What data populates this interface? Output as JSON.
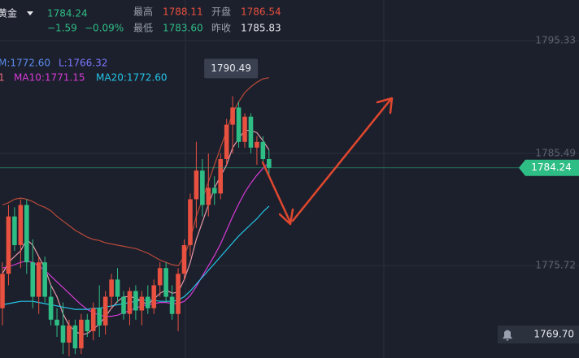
{
  "header": {
    "name": "黄金",
    "price": "1784.24",
    "change": "−1.59",
    "change_pct": "−0.09%",
    "high_label": "最高",
    "high": "1788.11",
    "open_label": "开盘",
    "open": "1786.54",
    "low_label": "最低",
    "low": "1783.60",
    "prev_label": "昨收",
    "prev": "1785.83"
  },
  "chart_data": {
    "type": "candlestick",
    "up_color": "#e8503f",
    "down_color": "#2ebd85",
    "ylim": [
      1767.66,
      1798.87
    ],
    "yticks": [
      1795.33,
      1785.49,
      1775.72
    ],
    "grid": true,
    "open": [
      1772,
      1775,
      1780,
      1777.5,
      1781,
      1776,
      1773,
      1776,
      1773,
      1771,
      1770.5,
      1769,
      1770.5,
      1768.5,
      1771,
      1770,
      1772,
      1770.5,
      1773,
      1774.5,
      1773,
      1771.5,
      1773.5,
      1771.8,
      1773,
      1772,
      1774,
      1775.5,
      1773,
      1771.5,
      1775,
      1777.5,
      1781.5,
      1784,
      1781,
      1782.5,
      1782,
      1785,
      1788,
      1789.5,
      1786.5,
      1788.7,
      1786,
      1786.5,
      1785
    ],
    "high": [
      1776,
      1781,
      1780.8,
      1781.5,
      1781.5,
      1778,
      1776.5,
      1776.5,
      1774,
      1772,
      1772.5,
      1771,
      1771,
      1771.5,
      1771.5,
      1772.5,
      1774,
      1773.5,
      1775,
      1775.5,
      1773.5,
      1773.8,
      1774,
      1773.5,
      1774,
      1774.5,
      1776,
      1776,
      1774,
      1775.5,
      1778,
      1782,
      1786.5,
      1785,
      1785.5,
      1783.5,
      1785.5,
      1788.5,
      1790.49,
      1790,
      1789,
      1789,
      1787,
      1787,
      1785.8
    ],
    "low": [
      1770.5,
      1774,
      1777,
      1775.5,
      1775,
      1772,
      1771.5,
      1772.5,
      1770.5,
      1769.5,
      1768,
      1767.8,
      1768,
      1768,
      1769.5,
      1769.2,
      1769.5,
      1769.7,
      1772,
      1772.5,
      1771,
      1770.5,
      1771,
      1770.5,
      1771.5,
      1771.5,
      1773,
      1772.5,
      1771,
      1770,
      1774.5,
      1776.5,
      1779,
      1780,
      1780,
      1781,
      1781.5,
      1784.5,
      1785.5,
      1786,
      1786,
      1785.5,
      1784.5,
      1784.8,
      1783.6
    ],
    "close": [
      1775,
      1780,
      1777.5,
      1781,
      1776,
      1773,
      1776,
      1773,
      1771,
      1770.5,
      1769,
      1770.5,
      1768.5,
      1771,
      1770,
      1772,
      1770.5,
      1773,
      1774.5,
      1773,
      1771.5,
      1773.5,
      1771.8,
      1773,
      1772,
      1774,
      1775.5,
      1773,
      1771.5,
      1775,
      1777.5,
      1781.5,
      1784,
      1781,
      1782.5,
      1782,
      1785,
      1788,
      1789.5,
      1786.5,
      1788.7,
      1786,
      1786.5,
      1785,
      1784.24
    ],
    "tooltip_index": 38,
    "series": [
      {
        "color": "#b8493a",
        "values": [
          1781,
          1781.2,
          1781.5,
          1781.6,
          1781.5,
          1781.3,
          1781,
          1780.8,
          1780.5,
          1780,
          1779.6,
          1779.2,
          1778.8,
          1778.5,
          1778.2,
          1778,
          1777.9,
          1777.7,
          1777.6,
          1777.5,
          1777.4,
          1777.3,
          1777.2,
          1777,
          1776.8,
          1776.5,
          1776.2,
          1776,
          1775.8,
          1775.7,
          1776.5,
          1778,
          1780,
          1781.5,
          1783,
          1784.5,
          1786,
          1787.5,
          1789,
          1790,
          1790.8,
          1791.3,
          1791.7,
          1792,
          1792.1
        ]
      },
      {
        "color": "#e89aa8",
        "values": [
          1775,
          1776,
          1776.5,
          1777,
          1778,
          1777.5,
          1776.5,
          1775.5,
          1774,
          1773,
          1771.5,
          1770.5,
          1770,
          1769.7,
          1769.8,
          1770.2,
          1770.6,
          1771.3,
          1772,
          1772.6,
          1773,
          1773,
          1772.9,
          1772.6,
          1772.3,
          1772.8,
          1773.3,
          1773.6,
          1773.3,
          1773.4,
          1774.5,
          1776,
          1778,
          1779.5,
          1781,
          1782.5,
          1783.5,
          1784.5,
          1786,
          1786.8,
          1787.5,
          1787.5,
          1787.3,
          1786.6,
          1785.8
        ]
      },
      {
        "color": "#d63ad6",
        "values": [
          1775.5,
          1775.6,
          1775.8,
          1776,
          1776.1,
          1776,
          1775.7,
          1775.3,
          1774.8,
          1774.3,
          1773.8,
          1773.3,
          1772.8,
          1772.3,
          1771.9,
          1771.6,
          1771.4,
          1771.3,
          1771.3,
          1771.4,
          1771.6,
          1771.8,
          1772,
          1772.2,
          1772.3,
          1772.4,
          1772.5,
          1772.5,
          1772.4,
          1772.4,
          1772.6,
          1773.1,
          1773.9,
          1774.8,
          1775.7,
          1776.6,
          1777.6,
          1778.8,
          1780,
          1781.1,
          1782.1,
          1782.9,
          1783.6,
          1784.2,
          1784.7
        ]
      },
      {
        "color": "#25c5e8",
        "values": [
          1772.3,
          1772.4,
          1772.5,
          1772.6,
          1772.6,
          1772.6,
          1772.5,
          1772.4,
          1772.3,
          1772.2,
          1772.1,
          1772,
          1771.9,
          1771.9,
          1771.9,
          1772,
          1772,
          1772.1,
          1772.2,
          1772.3,
          1772.4,
          1772.5,
          1772.6,
          1772.7,
          1772.7,
          1772.7,
          1772.6,
          1772.6,
          1772.6,
          1772.7,
          1773,
          1773.5,
          1774.1,
          1774.7,
          1775.3,
          1775.9,
          1776.5,
          1777.1,
          1777.7,
          1778.3,
          1778.8,
          1779.3,
          1779.8,
          1780.4,
          1780.9
        ]
      }
    ],
    "legend": [
      {
        "text": "M:1772.60",
        "color": "#5b8def"
      },
      {
        "text": "L:1766.32",
        "color": "#7b79ff"
      },
      {
        "text": "1",
        "color": "#e86a7a"
      },
      {
        "text": "MA10:1771.15",
        "color": "#d63ad6"
      },
      {
        "text": "MA20:1772.60",
        "color": "#25c5e8"
      }
    ],
    "last_price": 1784.24,
    "last_color": "#2ebd85",
    "alert_price": {
      "value": 1769.7,
      "label": "1769.70"
    }
  }
}
